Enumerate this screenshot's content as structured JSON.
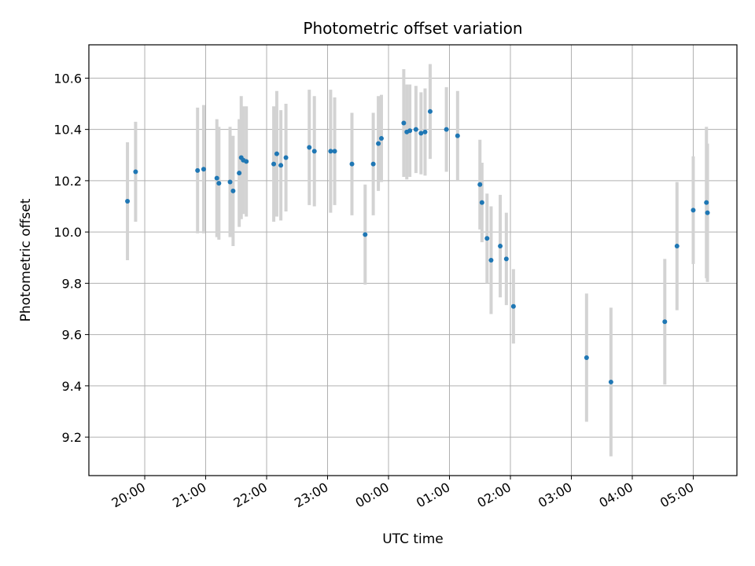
{
  "chart_data": {
    "type": "scatter",
    "title": "Photometric offset variation",
    "xlabel": "UTC time",
    "ylabel": "Photometric offset",
    "x_unit": "hour of day (UTC), ticks shown as HH:MM, timeline crosses midnight",
    "x_ticks": [
      "20:00",
      "21:00",
      "22:00",
      "23:00",
      "00:00",
      "01:00",
      "02:00",
      "03:00",
      "04:00",
      "05:00"
    ],
    "y_ticks": [
      "9.2",
      "9.4",
      "9.6",
      "9.8",
      "10.0",
      "10.2",
      "10.4",
      "10.6"
    ],
    "ylim": [
      9.05,
      10.73
    ],
    "grid": true,
    "colors": {
      "point": "#1f77b4",
      "errorbar": "#d3d3d3",
      "grid": "#b0b0b0",
      "axis": "#000000"
    },
    "series": [
      {
        "x": [
          "19:43",
          "19:51",
          "20:52",
          "20:58",
          "21:11",
          "21:13",
          "21:24",
          "21:27",
          "21:33",
          "21:35",
          "21:37",
          "21:40",
          "22:07",
          "22:10",
          "22:14",
          "22:19",
          "22:42",
          "22:47",
          "23:03",
          "23:07",
          "23:24",
          "23:37",
          "23:45",
          "23:50",
          "23:53",
          "00:15",
          "00:18",
          "00:21",
          "00:27",
          "00:32",
          "00:36",
          "00:41",
          "00:57",
          "01:08",
          "01:30",
          "01:32",
          "01:37",
          "01:41",
          "01:50",
          "01:56",
          "02:03",
          "03:15",
          "03:39",
          "04:32",
          "04:44",
          "05:00",
          "05:13",
          "05:14"
        ],
        "y": [
          10.12,
          10.235,
          10.24,
          10.245,
          10.21,
          10.19,
          10.195,
          10.16,
          10.23,
          10.29,
          10.28,
          10.275,
          10.265,
          10.305,
          10.26,
          10.29,
          10.33,
          10.315,
          10.315,
          10.315,
          10.265,
          9.99,
          10.265,
          10.345,
          10.365,
          10.425,
          10.39,
          10.395,
          10.4,
          10.385,
          10.39,
          10.47,
          10.4,
          10.375,
          10.185,
          10.115,
          9.975,
          9.89,
          9.945,
          9.895,
          9.71,
          9.51,
          9.415,
          9.65,
          9.945,
          10.085,
          10.115,
          10.075
        ],
        "yerr": [
          0.23,
          0.195,
          0.245,
          0.25,
          0.23,
          0.22,
          0.215,
          0.215,
          0.21,
          0.24,
          0.21,
          0.215,
          0.225,
          0.245,
          0.215,
          0.21,
          0.225,
          0.215,
          0.24,
          0.21,
          0.2,
          0.195,
          0.2,
          0.185,
          0.17,
          0.21,
          0.185,
          0.18,
          0.17,
          0.16,
          0.17,
          0.185,
          0.165,
          0.175,
          0.175,
          0.155,
          0.175,
          0.21,
          0.2,
          0.18,
          0.145,
          0.25,
          0.29,
          0.245,
          0.25,
          0.21,
          0.295,
          0.27
        ]
      }
    ]
  }
}
